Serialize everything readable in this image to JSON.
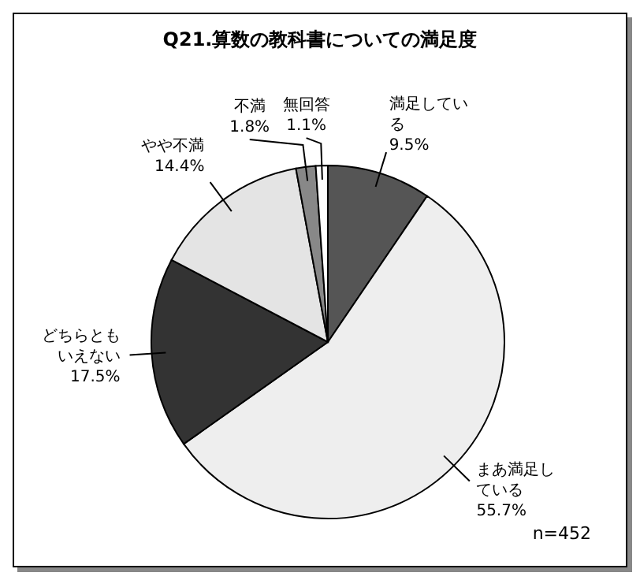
{
  "chart_data": {
    "type": "pie",
    "title": "Q21.算数の教科書についての満足度",
    "categories": [
      "満足している",
      "まあ満足している",
      "どちらともいえない",
      "やや不満",
      "不満",
      "無回答"
    ],
    "values": [
      9.5,
      55.7,
      17.5,
      14.4,
      1.8,
      1.1
    ],
    "value_labels": [
      "9.5%",
      "55.7%",
      "17.5%",
      "14.4%",
      "1.8%",
      "1.1%"
    ],
    "colors": [
      "#555555",
      "#eeeeee",
      "#333333",
      "#e4e4e4",
      "#888888",
      "#ffffff"
    ],
    "annotations": [
      "n=452"
    ]
  }
}
